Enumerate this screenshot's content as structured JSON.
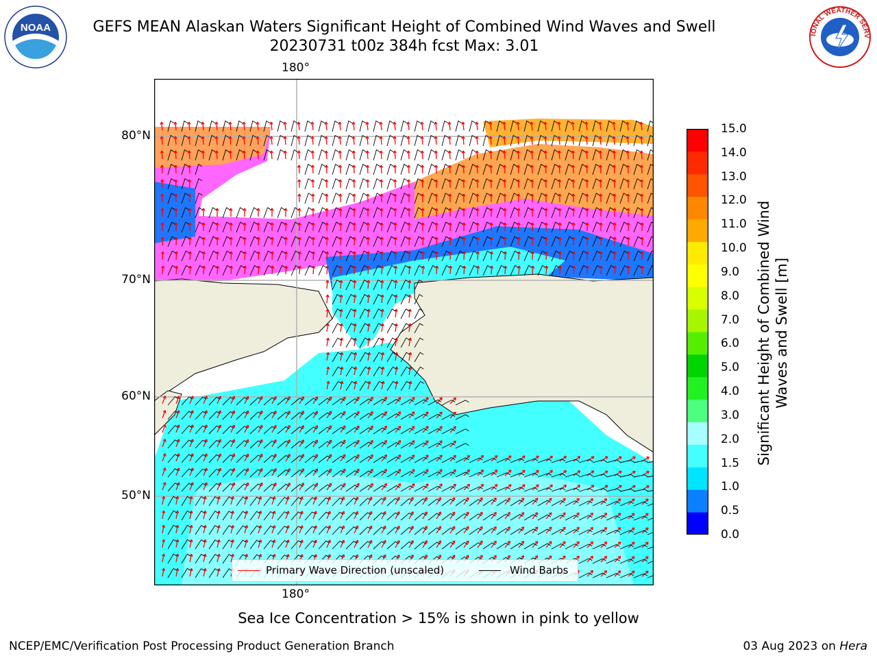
{
  "header": {
    "title_line1": "GEFS MEAN Alaskan Waters Significant Height of Combined Wind Waves and Swell",
    "title_line2": "20230731 t00z 384h fcst   Max: 3.01"
  },
  "logos": {
    "left": {
      "icon": "noaa-logo",
      "text": "NOAA"
    },
    "right": {
      "icon": "nws-logo",
      "text": "NATIONAL WEATHER SERVICE"
    }
  },
  "map": {
    "lat_labels": [
      "80°N",
      "70°N",
      "60°N",
      "50°N"
    ],
    "lon_label_top": "180°",
    "lon_label_bottom": "180°",
    "colors": {
      "land": "#efeedd",
      "sea_ice_pink": "#ff66ff",
      "sea_ice_orange": "#ffb233",
      "wave_blue": "#1f77ff",
      "wave_cyan": "#33ffff",
      "wave_lightcyan": "#aaffff",
      "wave_arrow": "#ff0000",
      "wind_barb": "#000000"
    }
  },
  "colorbar": {
    "ticks": [
      "15.0",
      "14.0",
      "13.0",
      "12.0",
      "11.0",
      "10.0",
      "9.0",
      "8.0",
      "7.0",
      "6.0",
      "5.0",
      "4.0",
      "3.0",
      "2.0",
      "1.5",
      "1.0",
      "0.5",
      "0.0"
    ],
    "colors_bottom_to_top": [
      "#0000ff",
      "#0a7fff",
      "#00e5ff",
      "#44ffff",
      "#a6ffff",
      "#4cff7f",
      "#22f022",
      "#00d500",
      "#55ee00",
      "#a8f500",
      "#d7ff00",
      "#ffff00",
      "#ffea00",
      "#ffaa00",
      "#ff8800",
      "#ff5500",
      "#ff2a00",
      "#ff0000"
    ],
    "label": "Significant Height of Combined Wind Waves and Swell [m]"
  },
  "legend": {
    "items": [
      {
        "label": "Primary Wave Direction (unscaled)",
        "color": "#ff0000"
      },
      {
        "label": "Wind Barbs",
        "color": "#000000"
      }
    ]
  },
  "note": "Sea Ice Concentration > 15% is shown in pink to yellow",
  "footer": {
    "left": "NCEP/EMC/Verification Post Processing Product Generation Branch",
    "right_prefix": "03 Aug 2023 on ",
    "right_host": "Hera"
  }
}
